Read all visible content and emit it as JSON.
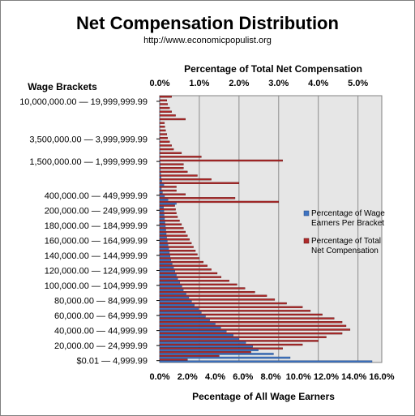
{
  "page": {
    "background": "#ffffff"
  },
  "colors": {
    "plot_bg": "#e6e6e6",
    "grid": "#8c8c8c",
    "series_wage": "#3f74c2",
    "series_comp": "#b02a2a",
    "bar_stroke": "#5a1010"
  },
  "chart_data": {
    "type": "bar",
    "orientation": "horizontal",
    "title": "Net Compensation Distribution",
    "subtitle": "http://www.economicpopulist.org",
    "top_axis": {
      "label": "Percentage of Total Net Compensation",
      "range": [
        0,
        5.6
      ],
      "ticks": [
        "0.0%",
        "1.0%",
        "2.0%",
        "3.0%",
        "4.0%",
        "5.0%"
      ]
    },
    "bottom_axis": {
      "label": "Pecentage of All Wage Earners",
      "range": [
        0,
        16
      ],
      "ticks": [
        "0.0%",
        "2.0%",
        "4.0%",
        "6.0%",
        "8.0%",
        "10.0%",
        "12.0%",
        "14.0%",
        "16.0%"
      ]
    },
    "category_axis_label": "Wage Brackets",
    "category_labels_shown": [
      "$0.01 — 4,999.99",
      "20,000.00 — 24,999.99",
      "40,000.00 — 44,999.99",
      "60,000.00 — 64,999.99",
      "80,000.00 — 84,999.99",
      "100,000.00 — 104,999.99",
      "120,000.00 — 124,999.99",
      "140,000.00 — 144,999.99",
      "160,000.00 — 164,999.99",
      "180,000.00 — 184,999.99",
      "200,000.00 — 249,999.99",
      "400,000.00 — 449,999.99",
      "1,500,000.00 — 1,999,999.99",
      "3,500,000.00 — 3,999,999.99",
      "10,000,000.00 — 19,999,999.99"
    ],
    "legend": {
      "placement": "right",
      "entries": [
        "Percentage of Wage Earners Per Bracket",
        "Percentage of Total Net Compensation"
      ]
    },
    "series": [
      {
        "name": "Percentage of Wage Earners Per Bracket",
        "axis": "bottom",
        "values": [
          15.3,
          9.4,
          8.2,
          7.1,
          6.7,
          6.2,
          5.7,
          5.3,
          4.8,
          4.4,
          4.0,
          3.6,
          3.3,
          3.0,
          2.8,
          2.5,
          2.3,
          2.1,
          1.9,
          1.7,
          1.6,
          1.45,
          1.3,
          1.2,
          1.1,
          1.0,
          0.9,
          0.8,
          0.75,
          0.7,
          0.65,
          0.6,
          0.55,
          0.5,
          0.47,
          0.44,
          0.41,
          0.38,
          0.35,
          0.32,
          0.3,
          0.28,
          1.2,
          0.6,
          0.35,
          0.2,
          0.12,
          0.3,
          0.15,
          0.1,
          0.07,
          0.05,
          0.04,
          0.03,
          0.02,
          0.02,
          0.02,
          0.015,
          0.01,
          0.01,
          0.01,
          0.01,
          0.005,
          0.005,
          0.005,
          0.005,
          0.004,
          0.004,
          0.003,
          0.003,
          0.005
        ]
      },
      {
        "name": "Percentage of Total Net Compensation",
        "axis": "top",
        "values": [
          0.7,
          1.5,
          2.3,
          3.1,
          3.6,
          4.0,
          4.2,
          4.6,
          4.8,
          4.7,
          4.6,
          4.4,
          4.1,
          3.8,
          3.6,
          3.2,
          2.9,
          2.7,
          2.4,
          2.15,
          1.95,
          1.75,
          1.55,
          1.45,
          1.3,
          1.2,
          1.1,
          1.0,
          0.95,
          0.9,
          0.85,
          0.8,
          0.75,
          0.7,
          0.65,
          0.6,
          0.55,
          0.5,
          0.45,
          0.42,
          0.4,
          0.38,
          3.0,
          1.9,
          0.65,
          0.42,
          0.42,
          2.0,
          1.3,
          0.95,
          0.7,
          0.6,
          0.6,
          3.1,
          1.05,
          0.55,
          0.35,
          0.3,
          0.25,
          0.2,
          0.18,
          0.15,
          0.13,
          0.12,
          0.65,
          0.4,
          0.3,
          0.25,
          0.2,
          0.18,
          0.3
        ]
      }
    ]
  }
}
